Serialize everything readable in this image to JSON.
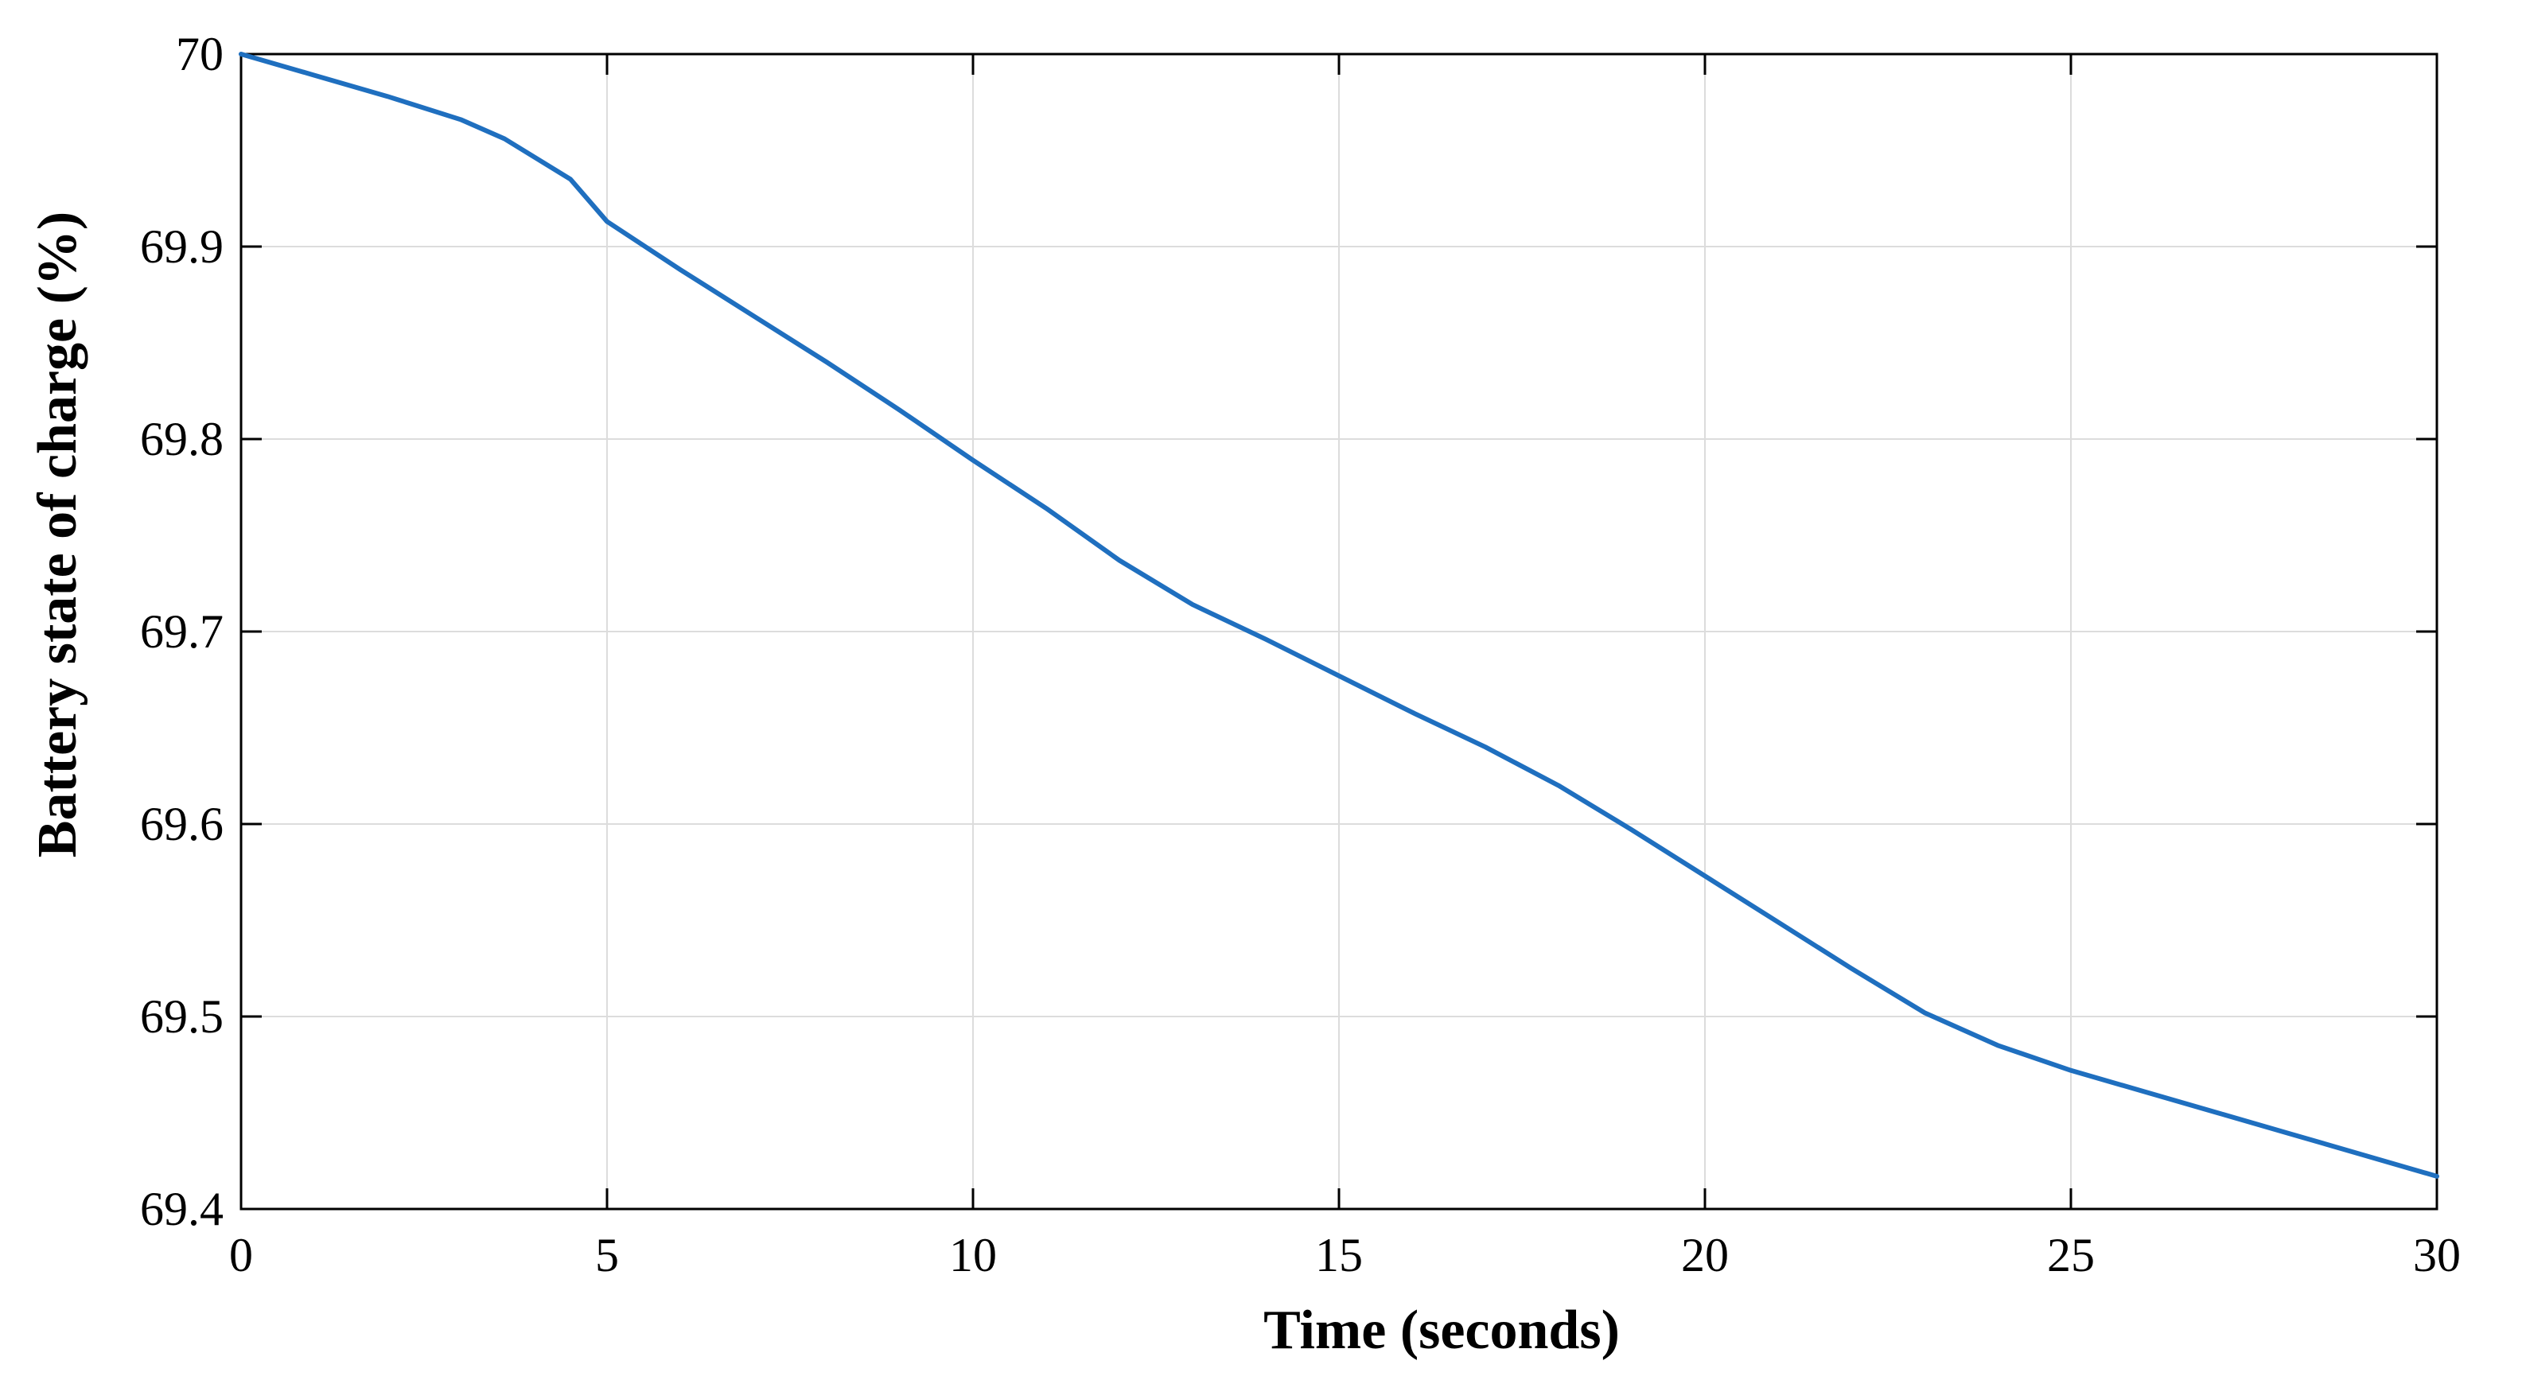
{
  "colors": {
    "line": "#1f6fbf",
    "grid": "#dcdcdc",
    "axis": "#000000",
    "background": "#ffffff"
  },
  "chart_data": {
    "type": "line",
    "title": "",
    "xlabel": "Time (seconds)",
    "ylabel": "Battery state of charge (%)",
    "xlim": [
      0,
      30
    ],
    "ylim": [
      69.4,
      70
    ],
    "xticks": [
      "0",
      "5",
      "10",
      "15",
      "20",
      "25",
      "30"
    ],
    "yticks": [
      "69.4",
      "69.5",
      "69.6",
      "69.7",
      "69.8",
      "69.9",
      "70"
    ],
    "grid": true,
    "legend": false,
    "series": [
      {
        "x": [
          0,
          1,
          2,
          3,
          3.6,
          4.5,
          5,
          6,
          7,
          8,
          9,
          10,
          11,
          12,
          13,
          14,
          15,
          16,
          17,
          18,
          19,
          20,
          21,
          22,
          23,
          24,
          25,
          26,
          27,
          28,
          29,
          30
        ],
        "y": [
          70.0,
          69.989,
          69.978,
          69.966,
          69.956,
          69.935,
          69.913,
          69.888,
          69.864,
          69.84,
          69.815,
          69.789,
          69.764,
          69.737,
          69.714,
          69.696,
          69.677,
          69.658,
          69.64,
          69.62,
          69.597,
          69.573,
          69.549,
          69.525,
          69.502,
          69.485,
          69.472,
          69.461,
          69.45,
          69.439,
          69.428,
          69.417
        ]
      }
    ]
  }
}
